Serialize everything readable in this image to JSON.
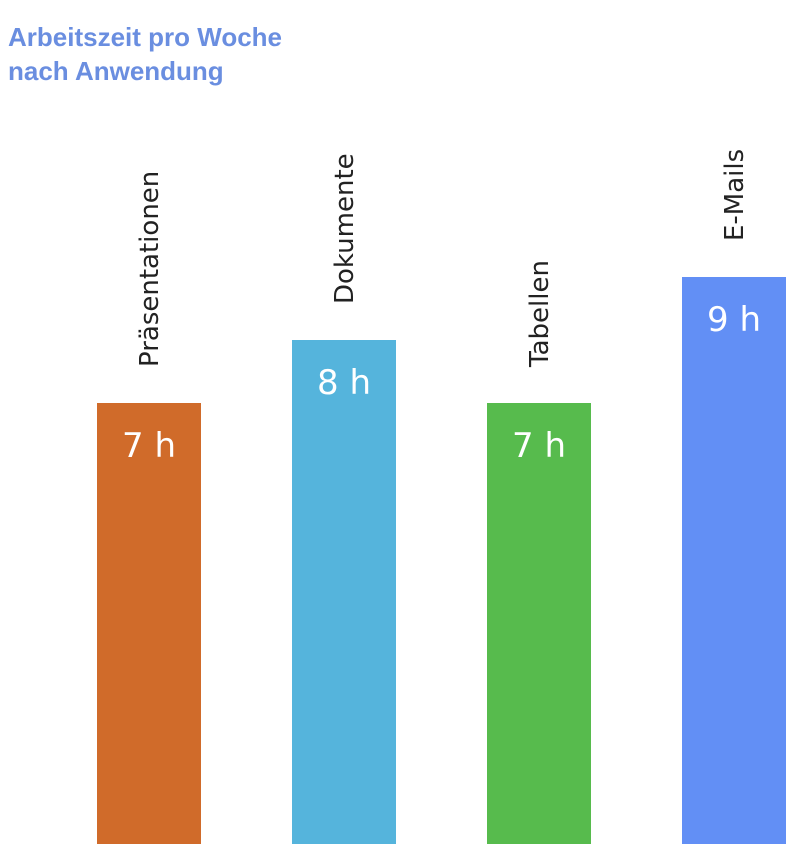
{
  "chart_data": {
    "type": "bar",
    "title_lines": [
      "Arbeitszeit pro Woche",
      "nach Anwendung"
    ],
    "categories": [
      "Präsentationen",
      "Dokumente",
      "Tabellen",
      "E-Mails"
    ],
    "values": [
      7,
      8,
      7,
      9
    ],
    "value_labels": [
      "7 h",
      "8 h",
      "7 h",
      "9 h"
    ],
    "unit": "h",
    "colors": [
      "#d06b2a",
      "#55b4dc",
      "#57bb4d",
      "#628ff5"
    ],
    "title_color": "#6a8ee0",
    "ylim": [
      0,
      9
    ],
    "grid": false,
    "legend": "none"
  }
}
